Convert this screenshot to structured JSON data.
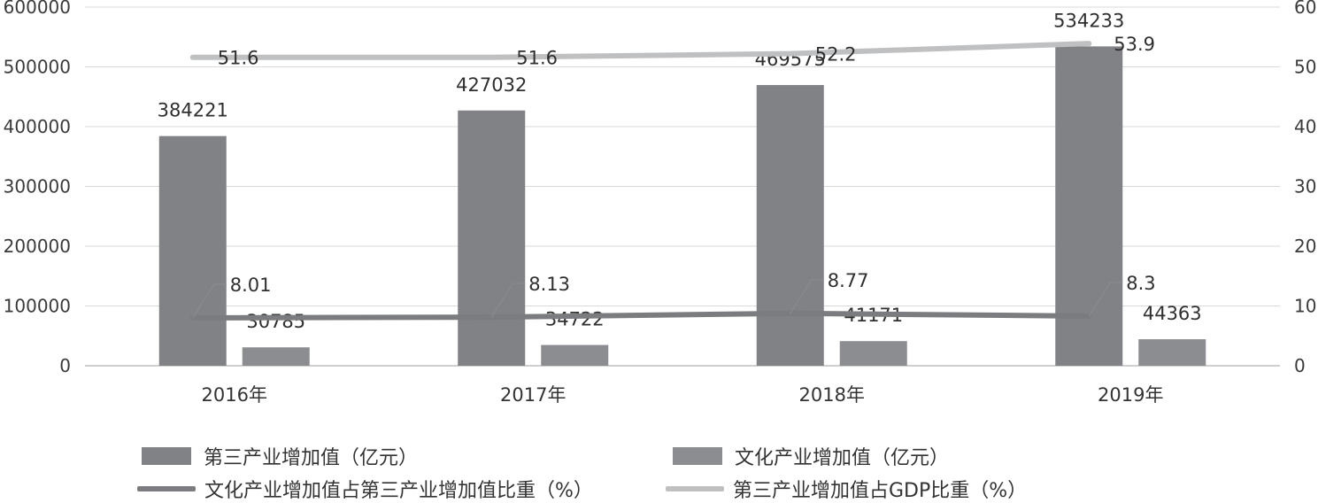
{
  "chart_data": {
    "type": "bar",
    "categories": [
      "2016年",
      "2017年",
      "2018年",
      "2019年"
    ],
    "left_axis": {
      "ylim": [
        0,
        600000
      ],
      "ticks": [
        "0",
        "100000",
        "200000",
        "300000",
        "400000",
        "500000",
        "600000"
      ]
    },
    "right_axis": {
      "ylim": [
        0,
        60
      ],
      "ticks": [
        "0",
        "10",
        "20",
        "30",
        "40",
        "50",
        "60"
      ]
    },
    "series": [
      {
        "name": "第三产业增加值（亿元）",
        "kind": "bar",
        "axis": "left",
        "color": "#818285",
        "values": [
          384221,
          427032,
          469575,
          534233
        ],
        "labels": [
          "384221",
          "427032",
          "469575",
          "534233"
        ]
      },
      {
        "name": "文化产业增加值（亿元）",
        "kind": "bar",
        "axis": "left",
        "color": "#8c8d90",
        "values": [
          30785,
          34722,
          41171,
          44363
        ],
        "labels": [
          "30785",
          "34722",
          "41171",
          "44363"
        ]
      },
      {
        "name": "文化产业增加值占第三产业增加值比重（%）",
        "kind": "line",
        "axis": "right",
        "color": "#7b7c7f",
        "values": [
          8.01,
          8.13,
          8.77,
          8.3
        ],
        "labels": [
          "8.01",
          "8.13",
          "8.77",
          "8.3"
        ]
      },
      {
        "name": "第三产业增加值占GDP比重（%）",
        "kind": "line",
        "axis": "right",
        "color": "#bfc0c2",
        "values": [
          51.6,
          51.6,
          52.2,
          53.9
        ],
        "labels": [
          "51.6",
          "51.6",
          "52.2",
          "53.9"
        ]
      }
    ],
    "grid": true,
    "legend_position": "bottom"
  }
}
